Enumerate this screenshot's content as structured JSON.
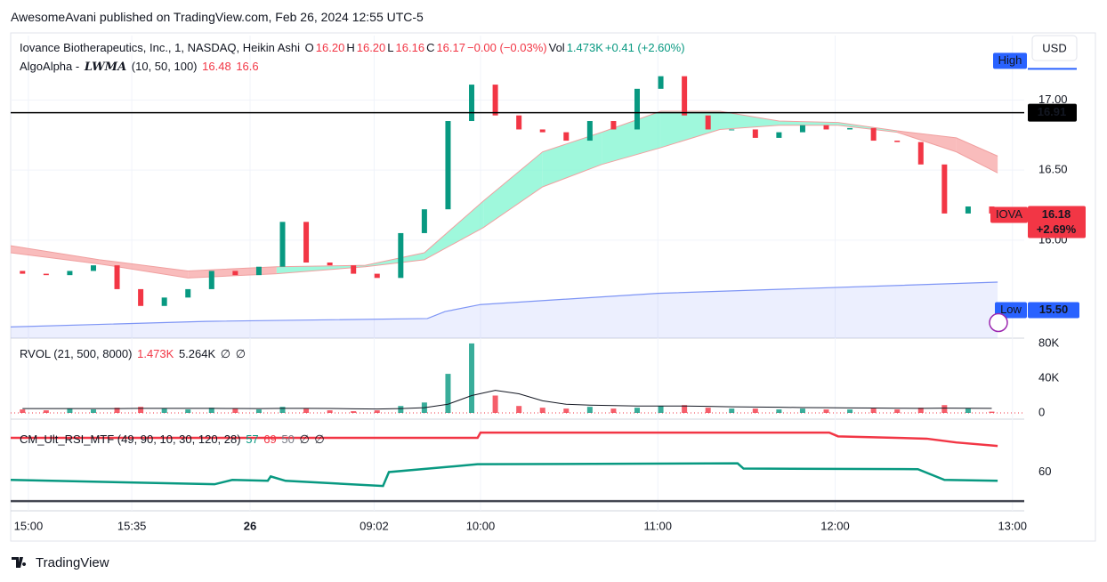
{
  "header": {
    "published": "AwesomeAvani published on TradingView.com, Feb 26, 2024 12:55 UTC-5",
    "symbol": "Iovance Biotherapeutics, Inc., 1, NASDAQ, Heikin Ashi",
    "quote": [
      {
        "k": "O",
        "v": "16.20"
      },
      {
        "k": "H",
        "v": "16.20"
      },
      {
        "k": "L",
        "v": "16.16"
      },
      {
        "k": "C",
        "v": "16.17"
      }
    ],
    "change": "−0.00 (−0.03%)",
    "volume_label": "Vol",
    "volume": "1.473K",
    "volume_change": "+0.41 (+2.60%)"
  },
  "footer": {
    "brand": "TradingView"
  },
  "chart_data": [
    {
      "type": "candlestick",
      "currency": "USD",
      "indicator_name": "AlgoAlpha - ",
      "indicator_tag": "LWMA",
      "indicator_params": "(10, 50, 100)",
      "up_color": "#089981",
      "down_color": "#f23645",
      "x": [
        4,
        12,
        20,
        28,
        36,
        44,
        52,
        60,
        68,
        76,
        84,
        92,
        100,
        108,
        116,
        124,
        132,
        140,
        148,
        156,
        164,
        172,
        180,
        188,
        196,
        204,
        212,
        220,
        228,
        236,
        244,
        252,
        260,
        268,
        276,
        284,
        292,
        300,
        308,
        316,
        324,
        332
      ],
      "open": [
        15.78,
        15.76,
        15.75,
        15.78,
        15.82,
        15.65,
        15.53,
        15.59,
        15.65,
        15.78,
        15.75,
        15.81,
        16.13,
        15.84,
        15.82,
        15.76,
        15.73,
        16.05,
        16.22,
        16.85,
        17.11,
        16.89,
        16.79,
        16.77,
        16.71,
        16.85,
        16.79,
        17.08,
        17.17,
        16.89,
        16.79,
        16.79,
        16.73,
        16.77,
        16.82,
        16.79,
        16.8,
        16.71,
        16.7,
        16.54,
        16.19,
        16.24
      ],
      "high": 17.28,
      "low": {
        "value": 15.5,
        "label": "15.50"
      },
      "close": [
        15.76,
        15.75,
        15.78,
        15.82,
        15.65,
        15.53,
        15.59,
        15.65,
        15.78,
        15.75,
        15.81,
        16.13,
        15.84,
        15.82,
        15.76,
        15.73,
        16.05,
        16.22,
        16.85,
        17.11,
        16.89,
        16.79,
        16.77,
        16.71,
        16.85,
        16.79,
        17.08,
        17.17,
        16.89,
        16.79,
        16.79,
        16.73,
        16.77,
        16.82,
        16.79,
        16.8,
        16.71,
        16.7,
        16.54,
        16.19,
        16.24,
        16.19
      ],
      "ribbon": {
        "x": [
          0,
          30,
          60,
          90,
          120,
          140,
          160,
          180,
          200,
          220,
          240,
          260,
          280,
          300,
          320,
          334
        ],
        "series": [
          {
            "color": "#f0a0a0",
            "values": [
              15.91,
              15.83,
              15.73,
              15.76,
              15.81,
              15.86,
              16.09,
              16.38,
              16.54,
              16.66,
              16.79,
              16.82,
              16.82,
              16.77,
              16.63,
              16.48
            ]
          },
          {
            "color": "#f0a0a0",
            "values": [
              15.96,
              15.86,
              15.78,
              15.81,
              15.82,
              15.91,
              16.28,
              16.63,
              16.77,
              16.92,
              16.92,
              16.85,
              16.84,
              16.78,
              16.73,
              16.6
            ]
          }
        ],
        "band_colors": [
          "#f7a5a5",
          "#f7a5a5",
          "#f7a5a5",
          "#7ff5d0",
          "#7ff5d0",
          "#7ff5d0",
          "#7ff5d0",
          "#7ff5d0",
          "#7ff5d0",
          "#7ff5d0",
          "#7ff5d0",
          "#7ff5d0",
          "#7ff5d0",
          "#f7a5a5",
          "#f7a5a5"
        ]
      },
      "baseline": {
        "color": "#7e95f5",
        "x": [
          0,
          66,
          141,
          147,
          159,
          219,
          334
        ],
        "values": [
          15.38,
          15.42,
          15.44,
          15.49,
          15.54,
          15.62,
          15.7
        ]
      },
      "hline": 16.91,
      "high_label": "High",
      "low_label": "Low",
      "symbol": "IOVA",
      "last": 16.18,
      "last_change": "+2.69%",
      "ylim": [
        15.3,
        17.46
      ],
      "yticks": [
        {
          "value": 16,
          "label": "16.00"
        },
        {
          "value": 16.5,
          "label": "16.50"
        },
        {
          "value": 17,
          "label": "17.00"
        }
      ],
      "xlim": [
        0,
        343
      ],
      "xticks": [
        {
          "value": 6,
          "label": "15:00"
        },
        {
          "value": 41,
          "label": "15:35"
        },
        {
          "value": 81,
          "label": "26"
        },
        {
          "value": 123,
          "label": "09:02"
        },
        {
          "value": 159,
          "label": "10:00"
        },
        {
          "value": 219,
          "label": "11:00"
        },
        {
          "value": 279,
          "label": "12:00"
        },
        {
          "value": 339,
          "label": "13:00"
        }
      ]
    },
    {
      "type": "bar",
      "title": "RVOL (21, 500, 8000)",
      "x": [
        4,
        12,
        20,
        28,
        36,
        44,
        52,
        60,
        68,
        76,
        84,
        92,
        100,
        108,
        116,
        124,
        132,
        140,
        148,
        156,
        164,
        172,
        180,
        188,
        196,
        204,
        212,
        220,
        228,
        236,
        244,
        252,
        260,
        268,
        276,
        284,
        292,
        300,
        308,
        316,
        324,
        332
      ],
      "values": [
        4000,
        3000,
        5000,
        4000,
        6000,
        7000,
        5000,
        4000,
        6000,
        5000,
        4000,
        7000,
        5000,
        3000,
        2000,
        3000,
        8000,
        12000,
        45000,
        80000,
        20000,
        8000,
        6000,
        5000,
        7000,
        5000,
        6000,
        8000,
        9000,
        6000,
        5000,
        5000,
        4000,
        5000,
        4000,
        4000,
        5000,
        4000,
        6000,
        9000,
        5000,
        1473
      ],
      "current": {
        "value": 1473,
        "label": "1.473K"
      },
      "ma": {
        "color": "#131722",
        "values": [
          5000,
          5000,
          5000,
          5000,
          5000,
          5200,
          5300,
          5200,
          5200,
          5100,
          5000,
          5200,
          5300,
          5100,
          4800,
          4500,
          5000,
          6000,
          10000,
          20000,
          26000,
          22000,
          14000,
          10000,
          9000,
          8500,
          8000,
          8000,
          8000,
          7500,
          7000,
          6800,
          6500,
          6200,
          6000,
          5800,
          5600,
          5400,
          5300,
          5500,
          5400,
          5264
        ]
      },
      "ma_current": {
        "value": 5264,
        "label": "5.264K"
      },
      "na": [
        "∅",
        "∅"
      ],
      "ylim": [
        0,
        83000
      ],
      "yticks": [
        0,
        {
          "value": 40000,
          "label": "40K"
        },
        {
          "value": 80000,
          "label": "80K"
        }
      ]
    },
    {
      "type": "line",
      "title": "CM_Ult_RSI_MTF (49, 90, 10, 30, 120, 28)",
      "series": [
        {
          "color": "#089981",
          "x": [
            0,
            69,
            75,
            87,
            88,
            93,
            126,
            128,
            158,
            246,
            248,
            307,
            316,
            334
          ],
          "values": [
            57.3,
            55.8,
            57.3,
            57.0,
            58.5,
            57.0,
            55.2,
            60,
            62.7,
            63,
            61.2,
            61,
            57.3,
            57
          ]
        },
        {
          "color": "#f23645",
          "x": [
            0,
            158,
            159,
            277,
            280,
            310,
            320,
            334
          ],
          "values": [
            71.8,
            71.8,
            73.6,
            73.6,
            72.3,
            71.5,
            70.2,
            69
          ]
        }
      ],
      "midline": 50,
      "na": [
        "∅",
        "∅"
      ],
      "ylim": [
        48.5,
        77
      ],
      "yticks": [
        60
      ]
    }
  ]
}
